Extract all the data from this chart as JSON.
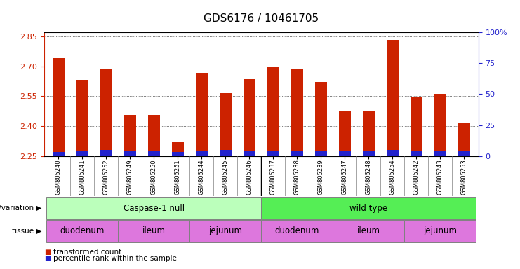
{
  "title": "GDS6176 / 10461705",
  "samples": [
    "GSM805240",
    "GSM805241",
    "GSM805252",
    "GSM805249",
    "GSM805250",
    "GSM805251",
    "GSM805244",
    "GSM805245",
    "GSM805246",
    "GSM805237",
    "GSM805238",
    "GSM805239",
    "GSM805247",
    "GSM805248",
    "GSM805254",
    "GSM805242",
    "GSM805243",
    "GSM805253"
  ],
  "transformed_count": [
    2.74,
    2.63,
    2.685,
    2.455,
    2.455,
    2.32,
    2.665,
    2.565,
    2.635,
    2.7,
    2.685,
    2.62,
    2.475,
    2.475,
    2.83,
    2.545,
    2.56,
    2.415
  ],
  "percentile_rank_pct": [
    3,
    4,
    5,
    4,
    4,
    3,
    4,
    5,
    4,
    4,
    4,
    4,
    4,
    4,
    5,
    4,
    4,
    4
  ],
  "ylim_left": [
    2.25,
    2.87
  ],
  "ylim_right": [
    0,
    100
  ],
  "yticks_left": [
    2.25,
    2.4,
    2.55,
    2.7,
    2.85
  ],
  "yticks_right": [
    0,
    25,
    50,
    75,
    100
  ],
  "ytick_labels_right": [
    "0",
    "25",
    "50",
    "75",
    "100%"
  ],
  "bar_color_red": "#cc2200",
  "bar_color_blue": "#2222cc",
  "bar_width": 0.5,
  "genotype_groups": [
    {
      "label": "Caspase-1 null",
      "start": 0,
      "end": 8,
      "color": "#bbffbb"
    },
    {
      "label": "wild type",
      "start": 9,
      "end": 17,
      "color": "#55ee55"
    }
  ],
  "tissue_groups": [
    {
      "label": "duodenum",
      "start": 0,
      "end": 2,
      "color": "#dd77dd"
    },
    {
      "label": "ileum",
      "start": 3,
      "end": 5,
      "color": "#dd77dd"
    },
    {
      "label": "jejunum",
      "start": 6,
      "end": 8,
      "color": "#dd77dd"
    },
    {
      "label": "duodenum",
      "start": 9,
      "end": 11,
      "color": "#dd77dd"
    },
    {
      "label": "ileum",
      "start": 12,
      "end": 14,
      "color": "#dd77dd"
    },
    {
      "label": "jejunum",
      "start": 15,
      "end": 17,
      "color": "#dd77dd"
    }
  ],
  "genotype_label": "genotype/variation",
  "tissue_label": "tissue",
  "legend_items": [
    {
      "label": "transformed count",
      "color": "#cc2200"
    },
    {
      "label": "percentile rank within the sample",
      "color": "#2222cc"
    }
  ],
  "bg_color": "#ffffff",
  "tick_color_left": "#cc2200",
  "tick_color_right": "#2222cc",
  "grid_color": "#000000",
  "base_value": 2.25,
  "xtick_bg_color": "#cccccc"
}
